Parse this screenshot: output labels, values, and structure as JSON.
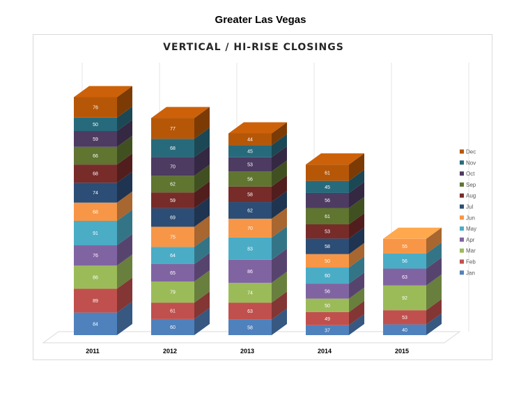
{
  "page": {
    "title": "Greater Las Vegas"
  },
  "chart_data": {
    "type": "bar",
    "stacked": true,
    "three_d": true,
    "title": "VERTICAL / HI-RISE CLOSINGS",
    "xlabel": "",
    "ylabel": "",
    "grid": true,
    "legend_position": "right",
    "categories": [
      "2011",
      "2012",
      "2013",
      "2014",
      "2015"
    ],
    "series": [
      {
        "name": "Jan",
        "color": "#4F81BD",
        "values": [
          84,
          60,
          58,
          37,
          40
        ]
      },
      {
        "name": "Feb",
        "color": "#C0504D",
        "values": [
          89,
          61,
          63,
          49,
          53
        ]
      },
      {
        "name": "Mar",
        "color": "#9BBB59",
        "values": [
          86,
          79,
          74,
          50,
          92
        ]
      },
      {
        "name": "Apr",
        "color": "#8064A2",
        "values": [
          76,
          65,
          86,
          56,
          63
        ]
      },
      {
        "name": "May",
        "color": "#4BACC6",
        "values": [
          91,
          64,
          83,
          60,
          56
        ]
      },
      {
        "name": "Jun",
        "color": "#F79646",
        "values": [
          68,
          75,
          70,
          50,
          55
        ]
      },
      {
        "name": "Jul",
        "color": "#2C4D75",
        "values": [
          74,
          69,
          62,
          58,
          null
        ]
      },
      {
        "name": "Aug",
        "color": "#772C2A",
        "values": [
          68,
          59,
          58,
          53,
          null
        ]
      },
      {
        "name": "Sep",
        "color": "#5F7530",
        "values": [
          66,
          62,
          56,
          61,
          null
        ]
      },
      {
        "name": "Oct",
        "color": "#4D3B62",
        "values": [
          59,
          70,
          53,
          56,
          null
        ]
      },
      {
        "name": "Nov",
        "color": "#276A7C",
        "values": [
          50,
          68,
          45,
          45,
          null
        ]
      },
      {
        "name": "Dec",
        "color": "#B65708",
        "values": [
          76,
          77,
          44,
          61,
          null
        ]
      }
    ]
  }
}
